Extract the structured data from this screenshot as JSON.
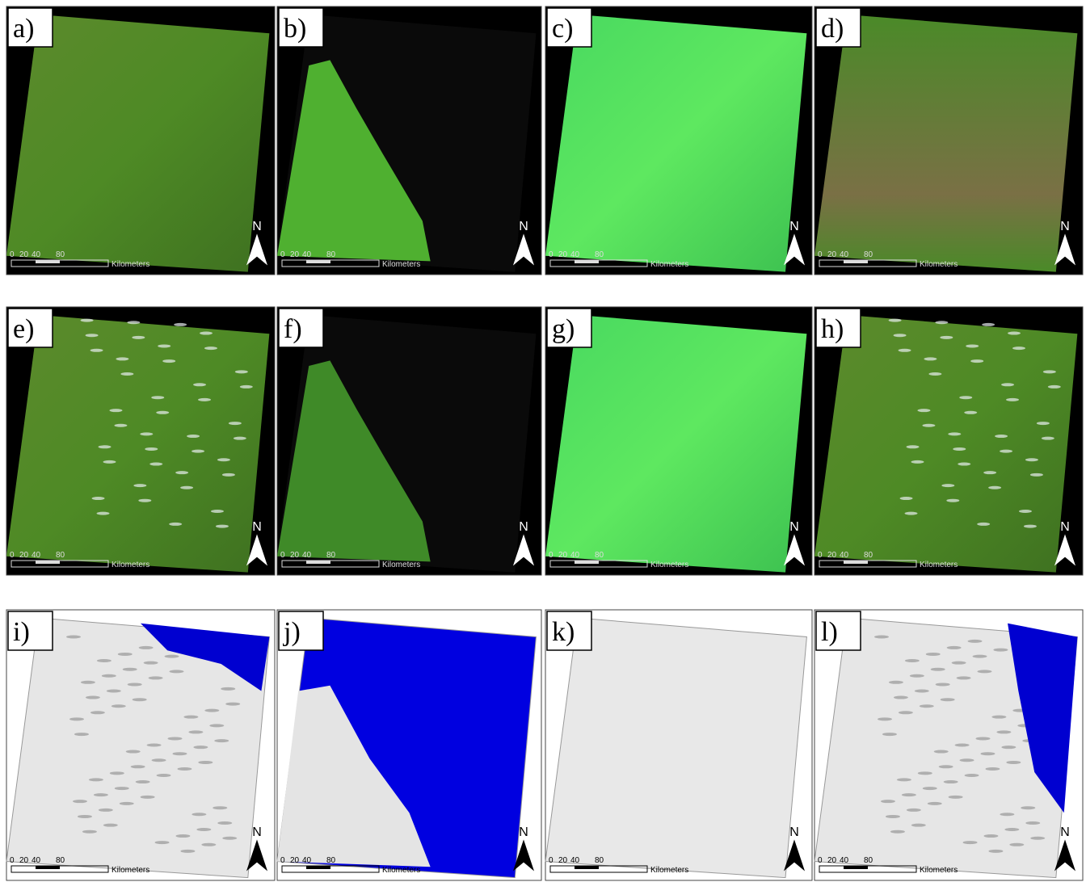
{
  "panels": [
    {
      "label": "a)",
      "scale_labels": [
        0,
        20,
        40,
        80
      ],
      "unit": "Kilometers",
      "north": "N"
    },
    {
      "label": "b)",
      "scale_labels": [
        0,
        20,
        40,
        80
      ],
      "unit": "Kilometers",
      "north": "N"
    },
    {
      "label": "c)",
      "scale_labels": [
        0,
        20,
        40,
        80
      ],
      "unit": "Kilometers",
      "north": "N"
    },
    {
      "label": "d)",
      "scale_labels": [
        0,
        20,
        40,
        80
      ],
      "unit": "Kilometers",
      "north": "N"
    },
    {
      "label": "e)",
      "scale_labels": [
        0,
        20,
        40,
        80
      ],
      "unit": "Kilometers",
      "north": "N"
    },
    {
      "label": "f)",
      "scale_labels": [
        0,
        20,
        40,
        80
      ],
      "unit": "Kilometers",
      "north": "N"
    },
    {
      "label": "g)",
      "scale_labels": [
        0,
        20,
        40,
        80
      ],
      "unit": "Kilometers",
      "north": "N"
    },
    {
      "label": "h)",
      "scale_labels": [
        0,
        20,
        40,
        80
      ],
      "unit": "Kilometers",
      "north": "N"
    },
    {
      "label": "i)",
      "scale_labels": [
        0,
        20,
        40,
        80
      ],
      "unit": "Kilometers",
      "north": "N"
    },
    {
      "label": "j)",
      "scale_labels": [
        0,
        20,
        40,
        80
      ],
      "unit": "Kilometers",
      "north": "N"
    },
    {
      "label": "k)",
      "scale_labels": [
        0,
        20,
        40,
        80
      ],
      "unit": "Kilometers",
      "north": "N"
    },
    {
      "label": "l)",
      "scale_labels": [
        0,
        20,
        40,
        80
      ],
      "unit": "Kilometers",
      "north": "N"
    }
  ]
}
